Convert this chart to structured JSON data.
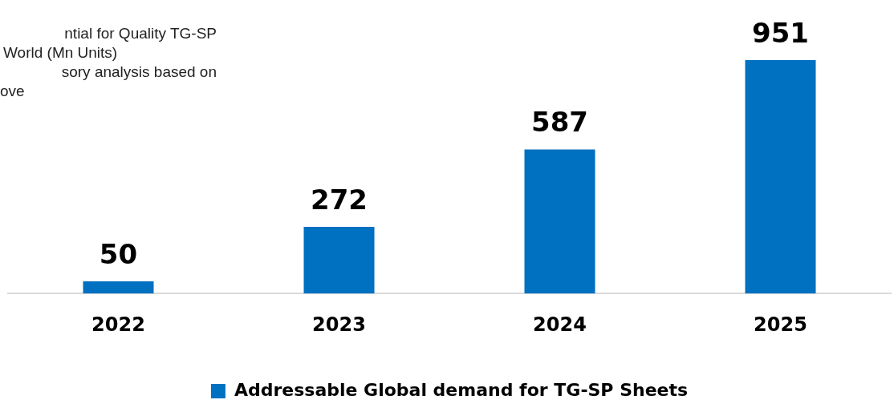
{
  "chart_data": {
    "type": "bar",
    "categories": [
      "2022",
      "2023",
      "2024",
      "2025"
    ],
    "series": [
      {
        "name": "Addressable Global demand for TG-SP Sheets",
        "color": "#0070c0",
        "values": [
          50,
          272,
          587,
          951
        ]
      }
    ],
    "tick_labels": "x",
    "data_labels": true,
    "grid": false,
    "legend": "bottom",
    "annotations": [
      "ntial for Quality TG-SP",
      "World (Mn Units)",
      "sory analysis based on",
      "ove"
    ]
  }
}
